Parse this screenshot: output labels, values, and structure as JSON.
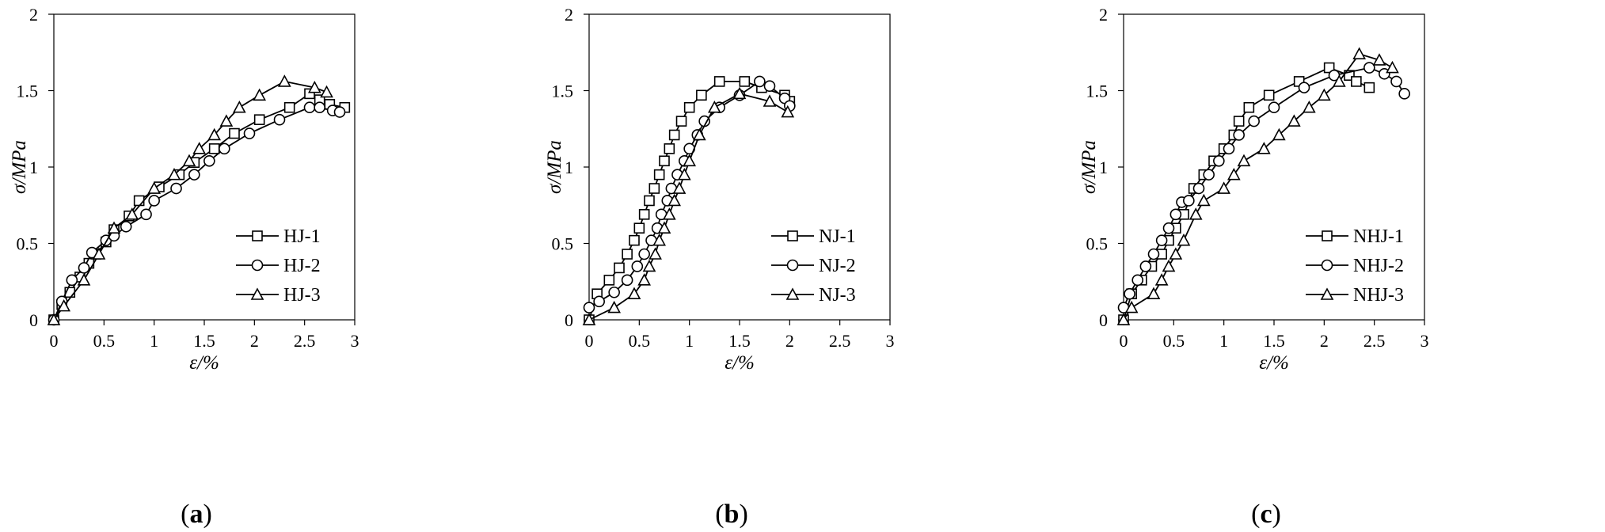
{
  "panels_markers": [
    "square",
    "circle",
    "triangle"
  ],
  "chart_data": [
    {
      "type": "line",
      "panel_label": "(a)",
      "panel_letter": "a",
      "xlabel": "ε/%",
      "ylabel": "σ/MPa",
      "xlim": [
        0,
        3
      ],
      "ylim": [
        0,
        2
      ],
      "xticks": [
        "0",
        "0.5",
        "1",
        "1.5",
        "2",
        "2.5",
        "3"
      ],
      "yticks": [
        "0",
        "0.5",
        "1",
        "1.5",
        "2"
      ],
      "grid": false,
      "legend_position": "bottom-right",
      "series": [
        {
          "name": "HJ-1",
          "marker": "square",
          "x": [
            0,
            0.08,
            0.16,
            0.26,
            0.35,
            0.42,
            0.52,
            0.6,
            0.75,
            0.85,
            1.05,
            1.25,
            1.4,
            1.6,
            1.8,
            2.05,
            2.35,
            2.55,
            2.65,
            2.75,
            2.9
          ],
          "y": [
            0,
            0.1,
            0.18,
            0.28,
            0.37,
            0.43,
            0.51,
            0.59,
            0.68,
            0.78,
            0.87,
            0.95,
            1.03,
            1.12,
            1.22,
            1.31,
            1.39,
            1.48,
            1.44,
            1.41,
            1.39
          ]
        },
        {
          "name": "HJ-2",
          "marker": "circle",
          "x": [
            0,
            0.08,
            0.18,
            0.3,
            0.38,
            0.52,
            0.6,
            0.72,
            0.92,
            1.0,
            1.22,
            1.4,
            1.55,
            1.7,
            1.95,
            2.25,
            2.55,
            2.65,
            2.78,
            2.85
          ],
          "y": [
            0,
            0.12,
            0.26,
            0.34,
            0.44,
            0.52,
            0.55,
            0.61,
            0.69,
            0.78,
            0.86,
            0.95,
            1.04,
            1.12,
            1.22,
            1.31,
            1.39,
            1.39,
            1.37,
            1.36
          ]
        },
        {
          "name": "HJ-3",
          "marker": "triangle",
          "x": [
            0,
            0.1,
            0.3,
            0.45,
            0.6,
            0.78,
            1.0,
            1.2,
            1.35,
            1.45,
            1.6,
            1.72,
            1.85,
            2.05,
            2.3,
            2.6,
            2.72
          ],
          "y": [
            0,
            0.09,
            0.26,
            0.43,
            0.6,
            0.69,
            0.86,
            0.95,
            1.04,
            1.12,
            1.21,
            1.3,
            1.39,
            1.47,
            1.56,
            1.52,
            1.49
          ]
        }
      ]
    },
    {
      "type": "line",
      "panel_label": "(b)",
      "panel_letter": "b",
      "xlabel": "ε/%",
      "ylabel": "σ/MPa",
      "xlim": [
        0,
        3
      ],
      "ylim": [
        0,
        2
      ],
      "xticks": [
        "0",
        "0.5",
        "1",
        "1.5",
        "2",
        "2.5",
        "3"
      ],
      "yticks": [
        "0",
        "0.5",
        "1",
        "1.5",
        "2"
      ],
      "grid": false,
      "legend_position": "bottom-right",
      "series": [
        {
          "name": "NJ-1",
          "marker": "square",
          "x": [
            0,
            0.08,
            0.2,
            0.3,
            0.38,
            0.45,
            0.5,
            0.55,
            0.6,
            0.65,
            0.7,
            0.75,
            0.8,
            0.85,
            0.92,
            1.0,
            1.12,
            1.3,
            1.55,
            1.72,
            1.95,
            2.0
          ],
          "y": [
            0,
            0.17,
            0.26,
            0.34,
            0.43,
            0.52,
            0.6,
            0.69,
            0.78,
            0.86,
            0.95,
            1.04,
            1.12,
            1.21,
            1.3,
            1.39,
            1.47,
            1.56,
            1.56,
            1.52,
            1.47,
            1.43
          ]
        },
        {
          "name": "NJ-2",
          "marker": "circle",
          "x": [
            0,
            0.1,
            0.25,
            0.38,
            0.48,
            0.55,
            0.62,
            0.68,
            0.72,
            0.78,
            0.82,
            0.88,
            0.95,
            1.0,
            1.08,
            1.15,
            1.3,
            1.5,
            1.7,
            1.8,
            1.95,
            2.0
          ],
          "y": [
            0.08,
            0.12,
            0.18,
            0.26,
            0.35,
            0.43,
            0.52,
            0.6,
            0.69,
            0.78,
            0.86,
            0.95,
            1.04,
            1.12,
            1.21,
            1.3,
            1.39,
            1.47,
            1.56,
            1.53,
            1.45,
            1.4
          ]
        },
        {
          "name": "NJ-3",
          "marker": "triangle",
          "x": [
            0,
            0.25,
            0.45,
            0.55,
            0.6,
            0.66,
            0.7,
            0.75,
            0.8,
            0.85,
            0.9,
            0.95,
            1.0,
            1.1,
            1.25,
            1.5,
            1.8,
            1.98
          ],
          "y": [
            0,
            0.08,
            0.17,
            0.26,
            0.35,
            0.43,
            0.52,
            0.6,
            0.69,
            0.78,
            0.86,
            0.95,
            1.04,
            1.21,
            1.39,
            1.48,
            1.43,
            1.36
          ]
        }
      ]
    },
    {
      "type": "line",
      "panel_label": "(c)",
      "panel_letter": "c",
      "xlabel": "ε/%",
      "ylabel": "σ/MPa",
      "xlim": [
        0,
        3
      ],
      "ylim": [
        0,
        2
      ],
      "xticks": [
        "0",
        "0.5",
        "1",
        "1.5",
        "2",
        "2.5",
        "3"
      ],
      "yticks": [
        "0",
        "0.5",
        "1",
        "1.5",
        "2"
      ],
      "grid": false,
      "legend_position": "bottom-right",
      "series": [
        {
          "name": "NHJ-1",
          "marker": "square",
          "x": [
            0,
            0.08,
            0.18,
            0.28,
            0.38,
            0.45,
            0.52,
            0.6,
            0.7,
            0.8,
            0.9,
            1.0,
            1.1,
            1.15,
            1.25,
            1.45,
            1.75,
            2.05,
            2.25,
            2.32,
            2.45
          ],
          "y": [
            0,
            0.17,
            0.26,
            0.35,
            0.43,
            0.52,
            0.6,
            0.69,
            0.86,
            0.95,
            1.04,
            1.12,
            1.21,
            1.3,
            1.39,
            1.47,
            1.56,
            1.65,
            1.6,
            1.56,
            1.52
          ]
        },
        {
          "name": "NHJ-2",
          "marker": "circle",
          "x": [
            0,
            0.06,
            0.14,
            0.22,
            0.3,
            0.38,
            0.45,
            0.52,
            0.58,
            0.65,
            0.75,
            0.85,
            0.95,
            1.05,
            1.15,
            1.3,
            1.5,
            1.8,
            2.1,
            2.45,
            2.6,
            2.72,
            2.8
          ],
          "y": [
            0.08,
            0.17,
            0.26,
            0.35,
            0.43,
            0.52,
            0.6,
            0.69,
            0.77,
            0.78,
            0.86,
            0.95,
            1.04,
            1.12,
            1.21,
            1.3,
            1.39,
            1.52,
            1.6,
            1.65,
            1.61,
            1.56,
            1.48
          ]
        },
        {
          "name": "NHJ-3",
          "marker": "triangle",
          "x": [
            0,
            0.08,
            0.3,
            0.38,
            0.45,
            0.52,
            0.6,
            0.72,
            0.8,
            1.0,
            1.1,
            1.2,
            1.4,
            1.55,
            1.7,
            1.85,
            2.0,
            2.15,
            2.35,
            2.55,
            2.68
          ],
          "y": [
            0,
            0.08,
            0.17,
            0.26,
            0.35,
            0.43,
            0.52,
            0.69,
            0.78,
            0.86,
            0.95,
            1.04,
            1.12,
            1.21,
            1.3,
            1.39,
            1.47,
            1.56,
            1.74,
            1.7,
            1.65
          ]
        }
      ]
    }
  ]
}
